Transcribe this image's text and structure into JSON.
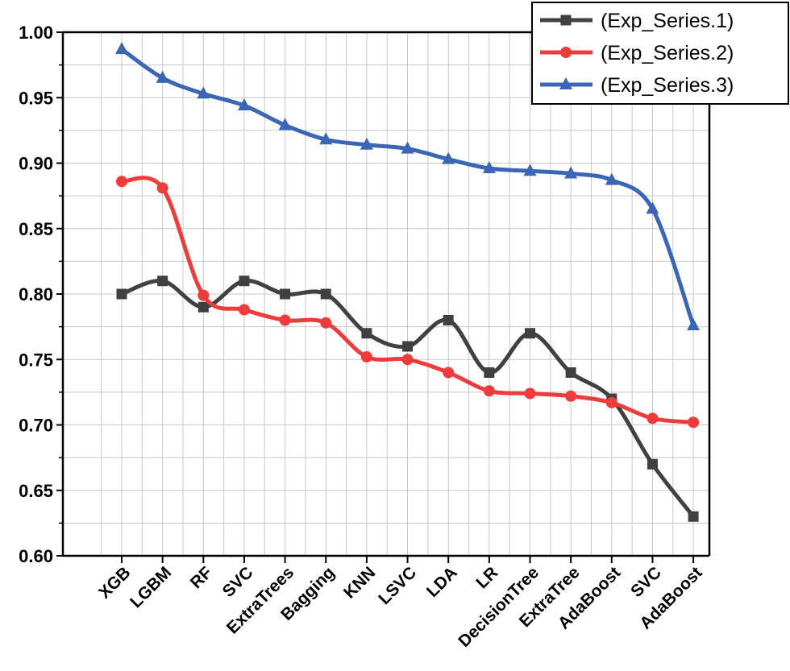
{
  "chart_data": {
    "type": "line",
    "title": "",
    "xlabel": "",
    "ylabel": "",
    "ylim": [
      0.6,
      1.0
    ],
    "yticks": [
      "0.60",
      "0.65",
      "0.70",
      "0.75",
      "0.80",
      "0.85",
      "0.90",
      "0.95",
      "1.00"
    ],
    "grid": true,
    "legend_position": "top-right",
    "categories": [
      "XGB",
      "LGBM",
      "RF",
      "SVC",
      "ExtraTrees",
      "Bagging",
      "KNN",
      "LSVC",
      "LDA",
      "LR",
      "DecisionTree",
      "ExtraTree",
      "AdaBoost",
      "SVC",
      "AdaBoost"
    ],
    "series": [
      {
        "name": "(Exp_Series.1)",
        "color": "#404040",
        "marker": "square",
        "values": [
          0.8,
          0.81,
          0.79,
          0.81,
          0.8,
          0.8,
          0.77,
          0.76,
          0.78,
          0.74,
          0.77,
          0.74,
          0.72,
          0.67,
          0.63
        ]
      },
      {
        "name": "(Exp_Series.2)",
        "color": "#ee3b3b",
        "marker": "circle",
        "values": [
          0.886,
          0.881,
          0.799,
          0.788,
          0.78,
          0.778,
          0.752,
          0.75,
          0.74,
          0.726,
          0.724,
          0.722,
          0.717,
          0.705,
          0.702
        ]
      },
      {
        "name": "(Exp_Series.3)",
        "color": "#3b66b5",
        "marker": "triangle",
        "values": [
          0.987,
          0.965,
          0.953,
          0.944,
          0.929,
          0.918,
          0.914,
          0.911,
          0.903,
          0.896,
          0.894,
          0.892,
          0.887,
          0.865,
          0.776
        ]
      }
    ]
  }
}
